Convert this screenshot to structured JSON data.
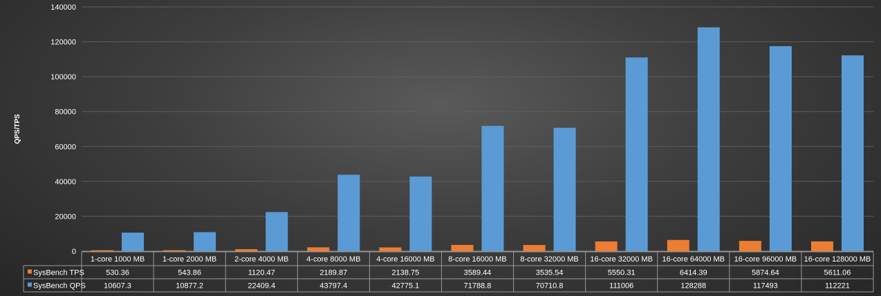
{
  "chart_data": {
    "type": "bar",
    "title": "",
    "xlabel": "",
    "ylabel": "QPS/TPS",
    "ylim": [
      0,
      140000
    ],
    "yticks": [
      0,
      20000,
      40000,
      60000,
      80000,
      100000,
      120000,
      140000
    ],
    "grid": true,
    "legend": "data-table-left",
    "categories": [
      "1-core 1000 MB",
      "1-core 2000 MB",
      "2-core 4000 MB",
      "4-core 8000 MB",
      "4-core 16000 MB",
      "8-core 16000 MB",
      "8-core 32000 MB",
      "16-core 32000 MB",
      "16-core 64000 MB",
      "16-core 96000 MB",
      "16-core 128000 MB"
    ],
    "series": [
      {
        "name": "SysBench TPS",
        "color": "#ED7D31",
        "values": [
          530.36,
          543.86,
          1120.47,
          2189.87,
          2138.75,
          3589.44,
          3535.54,
          5550.31,
          6414.39,
          5874.64,
          5611.06
        ]
      },
      {
        "name": "SysBench QPS",
        "color": "#5B9BD5",
        "values": [
          10607.3,
          10877.2,
          22409.4,
          43797.4,
          42775.1,
          71788.8,
          70710.8,
          111006,
          128288,
          117493,
          112221
        ]
      }
    ]
  }
}
